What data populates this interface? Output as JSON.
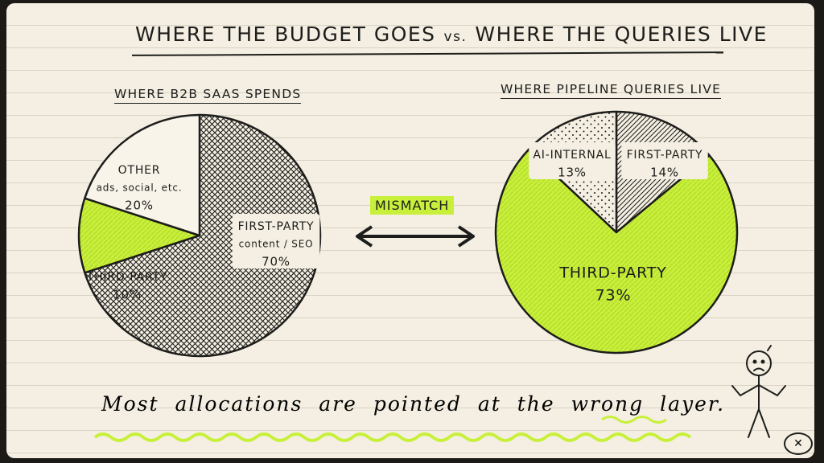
{
  "title": {
    "main": "WHERE THE BUDGET GOES",
    "vs": "vs.",
    "tail": "WHERE THE QUERIES LIVE"
  },
  "mismatch_label": "MISMATCH",
  "footer_text": "Most allocations are pointed at the wrong layer.",
  "close_label": "✕",
  "colors": {
    "ink": "#1d1d1b",
    "accent": "#c8f03b",
    "paper": "#f4efe2"
  },
  "chart_data": [
    {
      "type": "pie",
      "title": "WHERE B2B SAAS SPENDS",
      "slices": [
        {
          "label": "FIRST-PARTY",
          "sublabel": "content / SEO",
          "value": 70,
          "display": "70%",
          "style": "crosshatch"
        },
        {
          "label": "THIRD-PARTY",
          "sublabel": "",
          "value": 10,
          "display": "10%",
          "style": "accent"
        },
        {
          "label": "OTHER",
          "sublabel": "ads, social, etc.",
          "value": 20,
          "display": "20%",
          "style": "blank"
        }
      ]
    },
    {
      "type": "pie",
      "title": "WHERE PIPELINE QUERIES LIVE",
      "slices": [
        {
          "label": "FIRST-PARTY",
          "sublabel": "",
          "value": 14,
          "display": "14%",
          "style": "diagonal"
        },
        {
          "label": "THIRD-PARTY",
          "sublabel": "",
          "value": 73,
          "display": "73%",
          "style": "accent"
        },
        {
          "label": "AI-INTERNAL",
          "sublabel": "",
          "value": 13,
          "display": "13%",
          "style": "dots"
        }
      ]
    }
  ]
}
